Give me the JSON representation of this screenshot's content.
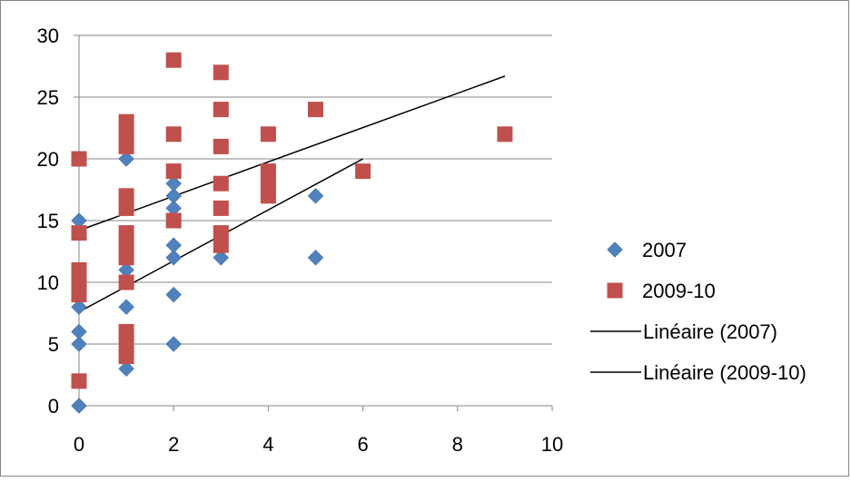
{
  "chart_data": {
    "type": "scatter",
    "xlim": [
      0,
      10
    ],
    "ylim": [
      0,
      30
    ],
    "x_ticks": [
      "0",
      "2",
      "4",
      "6",
      "8",
      "10"
    ],
    "y_ticks": [
      "0",
      "5",
      "10",
      "15",
      "20",
      "25",
      "30"
    ],
    "grid": "horizontal",
    "legend_position": "right",
    "series": [
      {
        "name": "2007",
        "marker": "diamond",
        "color": "#4f81bd",
        "points": [
          [
            0,
            0
          ],
          [
            0,
            5
          ],
          [
            0,
            6
          ],
          [
            0,
            8
          ],
          [
            0,
            9
          ],
          [
            0,
            10
          ],
          [
            0,
            14
          ],
          [
            0,
            15
          ],
          [
            1,
            3
          ],
          [
            1,
            4
          ],
          [
            1,
            5
          ],
          [
            1,
            8
          ],
          [
            1,
            11
          ],
          [
            1,
            12
          ],
          [
            1,
            13
          ],
          [
            1,
            20
          ],
          [
            1,
            21
          ],
          [
            2,
            5
          ],
          [
            2,
            9
          ],
          [
            2,
            12
          ],
          [
            2,
            13
          ],
          [
            2,
            16
          ],
          [
            2,
            17
          ],
          [
            2,
            18
          ],
          [
            3,
            12
          ],
          [
            3,
            13
          ],
          [
            5,
            12
          ],
          [
            5,
            17
          ]
        ]
      },
      {
        "name": "2009-10",
        "marker": "square",
        "color": "#c0504d",
        "points": [
          [
            0,
            2
          ],
          [
            0,
            9
          ],
          [
            0,
            10
          ],
          [
            0,
            11
          ],
          [
            0,
            14
          ],
          [
            0,
            20
          ],
          [
            1,
            4
          ],
          [
            1,
            5
          ],
          [
            1,
            6
          ],
          [
            1,
            10
          ],
          [
            1,
            12
          ],
          [
            1,
            13
          ],
          [
            1,
            14
          ],
          [
            1,
            16
          ],
          [
            1,
            17
          ],
          [
            1,
            21
          ],
          [
            1,
            22
          ],
          [
            1,
            23
          ],
          [
            2,
            15
          ],
          [
            2,
            19
          ],
          [
            2,
            22
          ],
          [
            2,
            28
          ],
          [
            3,
            13
          ],
          [
            3,
            14
          ],
          [
            3,
            16
          ],
          [
            3,
            18
          ],
          [
            3,
            21
          ],
          [
            3,
            24
          ],
          [
            3,
            27
          ],
          [
            4,
            17
          ],
          [
            4,
            18
          ],
          [
            4,
            19
          ],
          [
            4,
            22
          ],
          [
            5,
            24
          ],
          [
            6,
            19
          ],
          [
            9,
            22
          ]
        ]
      }
    ],
    "trendlines": [
      {
        "name": "Linéaire (2007)",
        "color": "#000000",
        "x": [
          0,
          6
        ],
        "y": [
          7.6,
          20
        ]
      },
      {
        "name": "Linéaire (2009-10)",
        "color": "#000000",
        "x": [
          0,
          9
        ],
        "y": [
          14.2,
          26.7
        ]
      }
    ]
  }
}
